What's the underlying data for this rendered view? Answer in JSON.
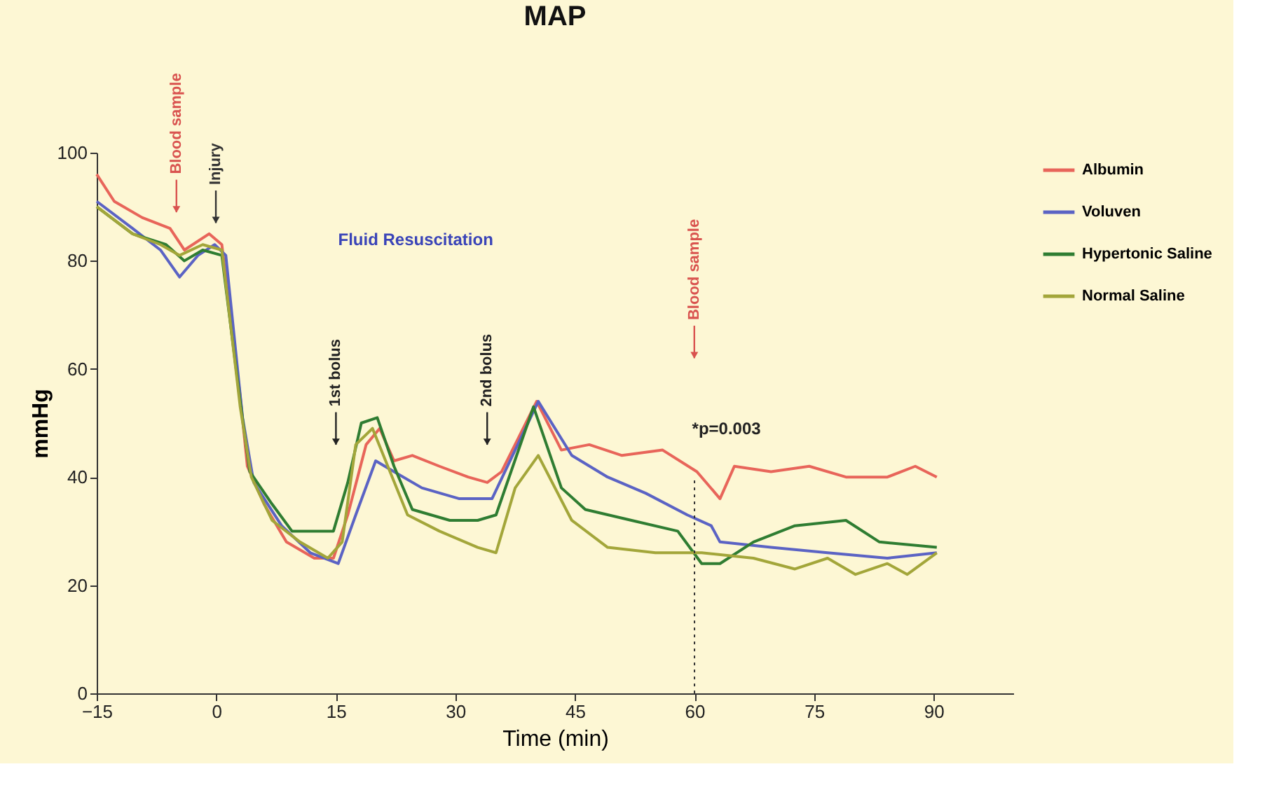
{
  "chart_data": {
    "type": "line",
    "title": "MAP",
    "xlabel": "Time (min)",
    "ylabel": "mmHg",
    "xlim": [
      -15,
      100
    ],
    "xticks": [
      -15,
      0,
      15,
      30,
      45,
      60,
      75,
      90
    ],
    "ylim": [
      0,
      100
    ],
    "yticks": [
      0,
      20,
      40,
      60,
      80,
      100
    ],
    "grid": false,
    "legend": "top right",
    "marker": "none",
    "line_style": "solid",
    "series": [
      {
        "name": "Albumin",
        "color": "#e8655a",
        "x": [
          -15,
          -12.8,
          -9.3,
          -5.8,
          -4,
          -0.9,
          0.7,
          3,
          3.9,
          6,
          8.8,
          12.3,
          14.7,
          16.5,
          18.8,
          20.5,
          22.3,
          24.6,
          28,
          31.6,
          34,
          35.8,
          40.2,
          43.3,
          46.8,
          50.9,
          56,
          60.3,
          63.2,
          65,
          69.6,
          74.4,
          79,
          84.2,
          87.7,
          90.4
        ],
        "values": [
          96,
          91,
          88,
          86,
          82,
          85,
          83,
          55,
          42,
          35,
          28,
          25,
          25,
          33,
          46,
          49,
          43,
          44,
          42,
          40,
          39,
          41,
          54,
          45,
          46,
          44,
          45,
          41,
          36,
          42,
          41,
          42,
          40,
          40,
          42,
          40
        ]
      },
      {
        "name": "Voluven",
        "color": "#5b63c4",
        "x": [
          -15,
          -10.5,
          -7,
          -4.6,
          -2.3,
          -0.2,
          1.2,
          3.3,
          4.7,
          8.2,
          11.8,
          15.3,
          17.5,
          20,
          22.3,
          25.8,
          30.5,
          34.6,
          40.4,
          44.6,
          49.1,
          53.9,
          59.1,
          62.1,
          63.2,
          69.6,
          76.7,
          84.2,
          90.4
        ],
        "values": [
          91,
          86,
          82,
          77,
          81,
          83,
          81,
          51,
          39,
          31,
          26,
          24,
          33,
          43,
          41,
          38,
          36,
          36,
          54,
          44,
          40,
          37,
          33,
          31,
          28,
          27,
          26,
          25,
          26
        ]
      },
      {
        "name": "Hypertonic Saline",
        "color": "#2f7d32",
        "x": [
          -15,
          -10.5,
          -6.3,
          -4,
          -1.7,
          0.7,
          3,
          4.2,
          7,
          9.5,
          11.8,
          14.7,
          16.5,
          18.2,
          20.2,
          22.3,
          24.6,
          29.3,
          32.8,
          35.1,
          39.8,
          43.3,
          46.3,
          52.1,
          57.9,
          60.9,
          63.2,
          67.4,
          72.6,
          79,
          83.2,
          90.4
        ],
        "values": [
          90,
          85,
          83,
          80,
          82,
          81,
          54,
          41,
          35,
          30,
          30,
          30,
          39,
          50,
          51,
          42,
          34,
          32,
          32,
          33,
          53,
          38,
          34,
          32,
          30,
          24,
          24,
          28,
          31,
          32,
          28,
          27
        ]
      },
      {
        "name": "Normal Saline",
        "color": "#a3a63a",
        "x": [
          -15,
          -10.5,
          -7,
          -4.6,
          -1.7,
          0.7,
          3,
          4.4,
          7,
          10.5,
          14,
          15.8,
          17.5,
          19.6,
          21.8,
          24,
          28,
          32.8,
          35.1,
          37.5,
          40.4,
          44.6,
          49.1,
          55.1,
          60.9,
          67.4,
          72.6,
          76.7,
          80.2,
          84.2,
          86.7,
          90.4
        ],
        "values": [
          90,
          85,
          83,
          81,
          83,
          82,
          53,
          40,
          32,
          28,
          25,
          28,
          46,
          49,
          41,
          33,
          30,
          27,
          26,
          38,
          44,
          32,
          27,
          26,
          26,
          25,
          23,
          25,
          22,
          24,
          22,
          26
        ]
      }
    ],
    "ref_lines": [
      {
        "axis": "x",
        "value": 60,
        "line_style": "dotted",
        "color": "#333333"
      }
    ],
    "annotations": [
      "Blood sample",
      "Injury",
      "Fluid Resuscitation",
      "1st bolus",
      "2nd bolus",
      "Blood sample",
      "*p=0.003"
    ]
  }
}
